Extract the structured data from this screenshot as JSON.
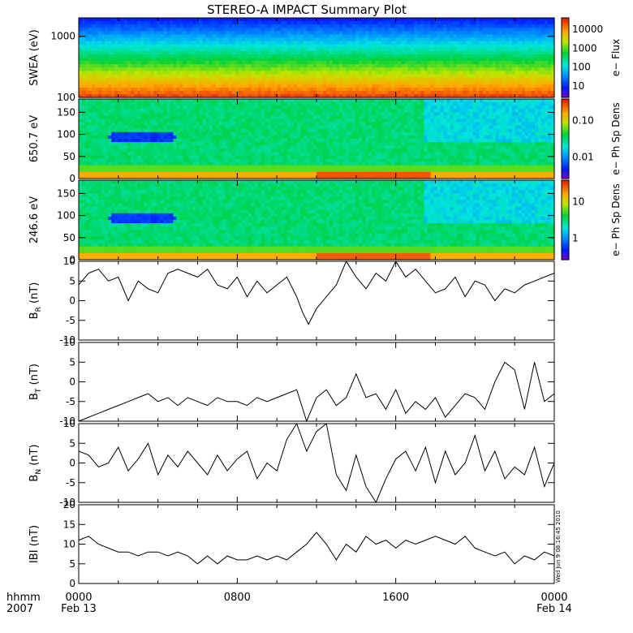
{
  "title": "STEREO-A IMPACT Summary Plot",
  "stamp": "Wed Jun  9 08:16:45 2010",
  "time_axis": {
    "row1_label": "hhmm",
    "row2_label": "2007",
    "ticks": [
      {
        "hour": 0,
        "label": "0000",
        "date": "Feb 13"
      },
      {
        "hour": 8,
        "label": "0800",
        "date": ""
      },
      {
        "hour": 16,
        "label": "1600",
        "date": ""
      },
      {
        "hour": 24,
        "label": "0000",
        "date": "Feb 14"
      }
    ]
  },
  "chart_data": [
    {
      "type": "heatmap",
      "ylabel": "SWEA (eV)",
      "yscale": "log",
      "ylim": [
        100,
        2000
      ],
      "yticks": [
        100,
        1000
      ],
      "ytick_labels": [
        "100",
        "1000"
      ],
      "colorbar_label": "e− Flux",
      "colorbar_ticks": [
        "10",
        "100",
        "1000",
        "10000"
      ],
      "xlim": [
        0,
        24
      ]
    },
    {
      "type": "heatmap",
      "ylabel": "650.7 eV",
      "ylim": [
        0,
        180
      ],
      "yticks": [
        0,
        50,
        100,
        150
      ],
      "colorbar_label": "e− Ph Sp Dens",
      "colorbar_ticks": [
        "0.01",
        "0.10"
      ],
      "xlim": [
        0,
        24
      ]
    },
    {
      "type": "heatmap",
      "ylabel": "246.6 eV",
      "ylim": [
        0,
        180
      ],
      "yticks": [
        0,
        50,
        100,
        150
      ],
      "colorbar_label": "e− Ph Sp Dens",
      "colorbar_ticks": [
        "1",
        "10"
      ],
      "xlim": [
        0,
        24
      ]
    },
    {
      "type": "line",
      "ylabel": "B",
      "ylabel_sub": "R",
      "ylabel_unit": "(nT)",
      "ylim": [
        -10,
        10
      ],
      "yticks": [
        -10,
        -5,
        0,
        5,
        10
      ],
      "xlim": [
        0,
        24
      ],
      "series": [
        {
          "x": [
            0,
            0.5,
            1,
            1.5,
            2,
            2.5,
            3,
            3.5,
            4,
            4.5,
            5,
            5.5,
            6,
            6.5,
            7,
            7.5,
            8,
            8.5,
            9,
            9.5,
            10,
            10.5,
            11,
            11.3,
            11.6,
            12,
            12.5,
            13,
            13.5,
            14,
            14.5,
            15,
            15.5,
            16,
            16.5,
            17,
            17.5,
            18,
            18.5,
            19,
            19.5,
            20,
            20.5,
            21,
            21.5,
            22,
            22.5,
            23,
            23.5,
            24
          ],
          "y": [
            4,
            7,
            8,
            5,
            6,
            0,
            5,
            3,
            2,
            7,
            8,
            7,
            6,
            8,
            4,
            3,
            6,
            1,
            5,
            2,
            4,
            6,
            1,
            -3,
            -6,
            -2,
            1,
            4,
            10,
            6,
            3,
            7,
            5,
            10,
            6,
            8,
            5,
            2,
            3,
            6,
            1,
            5,
            4,
            0,
            3,
            2,
            4,
            5,
            6,
            7
          ]
        }
      ]
    },
    {
      "type": "line",
      "ylabel": "B",
      "ylabel_sub": "T",
      "ylabel_unit": "(nT)",
      "ylim": [
        -10,
        10
      ],
      "yticks": [
        -10,
        -5,
        0,
        5,
        10
      ],
      "xlim": [
        0,
        24
      ],
      "series": [
        {
          "x": [
            0,
            0.5,
            1,
            1.5,
            2,
            2.5,
            3,
            3.5,
            4,
            4.5,
            5,
            5.5,
            6,
            6.5,
            7,
            7.5,
            8,
            8.5,
            9,
            9.5,
            10,
            10.5,
            11,
            11.5,
            12,
            12.5,
            13,
            13.5,
            14,
            14.5,
            15,
            15.5,
            16,
            16.5,
            17,
            17.5,
            18,
            18.5,
            19,
            19.5,
            20,
            20.5,
            21,
            21.5,
            22,
            22.5,
            23,
            23.5,
            24
          ],
          "y": [
            -10,
            -9,
            -8,
            -7,
            -6,
            -5,
            -4,
            -3,
            -5,
            -4,
            -6,
            -4,
            -5,
            -6,
            -4,
            -5,
            -5,
            -6,
            -4,
            -5,
            -4,
            -3,
            -2,
            -10,
            -4,
            -2,
            -6,
            -4,
            2,
            -4,
            -3,
            -7,
            -2,
            -8,
            -5,
            -7,
            -4,
            -9,
            -6,
            -3,
            -4,
            -7,
            0,
            5,
            3,
            -7,
            5,
            -5,
            -3
          ]
        }
      ]
    },
    {
      "type": "line",
      "ylabel": "B",
      "ylabel_sub": "N",
      "ylabel_unit": "(nT)",
      "ylim": [
        -10,
        10
      ],
      "yticks": [
        -10,
        -5,
        0,
        5,
        10
      ],
      "xlim": [
        0,
        24
      ],
      "series": [
        {
          "x": [
            0,
            0.5,
            1,
            1.5,
            2,
            2.5,
            3,
            3.5,
            4,
            4.5,
            5,
            5.5,
            6,
            6.5,
            7,
            7.5,
            8,
            8.5,
            9,
            9.5,
            10,
            10.5,
            11,
            11.5,
            12,
            12.5,
            13,
            13.5,
            14,
            14.5,
            15,
            15.5,
            16,
            16.5,
            17,
            17.5,
            18,
            18.5,
            19,
            19.5,
            20,
            20.5,
            21,
            21.5,
            22,
            22.5,
            23,
            23.5,
            24
          ],
          "y": [
            3,
            2,
            -1,
            0,
            4,
            -2,
            1,
            5,
            -3,
            2,
            -1,
            3,
            0,
            -3,
            2,
            -2,
            1,
            3,
            -4,
            0,
            -2,
            6,
            10,
            3,
            8,
            10,
            -3,
            -7,
            2,
            -6,
            -10,
            -4,
            1,
            3,
            -2,
            4,
            -5,
            3,
            -3,
            0,
            7,
            -2,
            3,
            -4,
            -1,
            -3,
            4,
            -6,
            0
          ]
        }
      ]
    },
    {
      "type": "line",
      "ylabel": "IBI",
      "ylabel_unit": "(nT)",
      "ylim": [
        0,
        20
      ],
      "yticks": [
        0,
        5,
        10,
        15,
        20
      ],
      "xlim": [
        0,
        24
      ],
      "series": [
        {
          "x": [
            0,
            0.5,
            1,
            1.5,
            2,
            2.5,
            3,
            3.5,
            4,
            4.5,
            5,
            5.5,
            6,
            6.5,
            7,
            7.5,
            8,
            8.5,
            9,
            9.5,
            10,
            10.5,
            11,
            11.5,
            12,
            12.5,
            13,
            13.5,
            14,
            14.5,
            15,
            15.5,
            16,
            16.5,
            17,
            17.5,
            18,
            18.5,
            19,
            19.5,
            20,
            20.5,
            21,
            21.5,
            22,
            22.5,
            23,
            23.5,
            24
          ],
          "y": [
            11,
            12,
            10,
            9,
            8,
            8,
            7,
            8,
            8,
            7,
            8,
            7,
            5,
            7,
            5,
            7,
            6,
            6,
            7,
            6,
            7,
            6,
            8,
            10,
            13,
            10,
            6,
            10,
            8,
            12,
            10,
            11,
            9,
            11,
            10,
            11,
            12,
            11,
            10,
            12,
            9,
            8,
            7,
            8,
            5,
            7,
            6,
            8,
            7
          ]
        }
      ]
    }
  ]
}
